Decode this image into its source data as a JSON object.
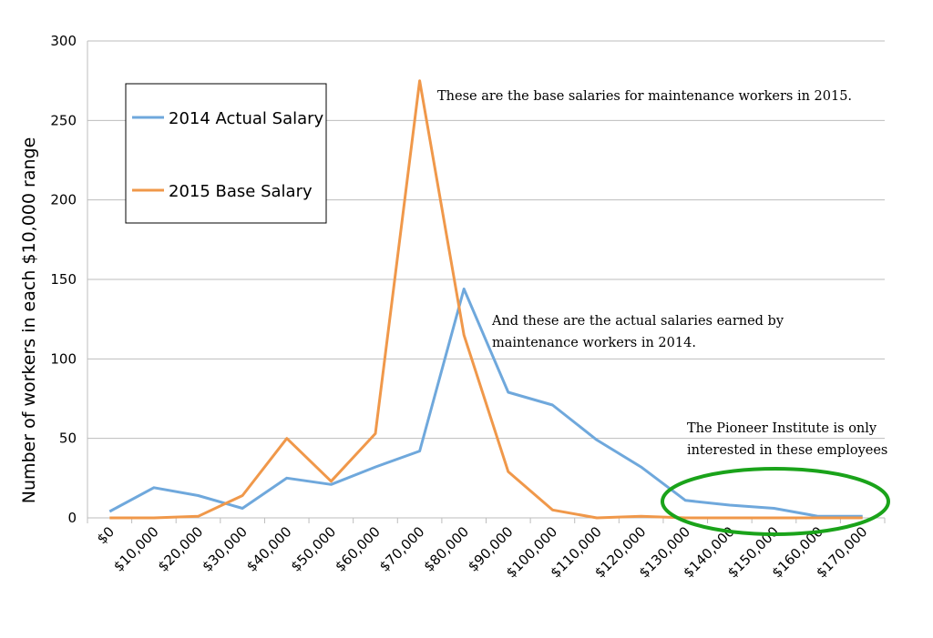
{
  "chart_data": {
    "type": "line",
    "title": "",
    "xlabel": "",
    "ylabel": "Number of workers in each $10,000 range",
    "categories": [
      "$0",
      "$10,000",
      "$20,000",
      "$30,000",
      "$40,000",
      "$50,000",
      "$60,000",
      "$70,000",
      "$80,000",
      "$90,000",
      "$100,000",
      "$110,000",
      "$120,000",
      "$130,000",
      "$140,000",
      "$150,000",
      "$160,000",
      "$170,000"
    ],
    "ylim": [
      0,
      300
    ],
    "yticks": [
      0,
      50,
      100,
      150,
      200,
      250,
      300
    ],
    "grid": "horizontal",
    "legend_position": "top-left",
    "series": [
      {
        "name": "2014 Actual Salary",
        "color": "#6fa8dc",
        "values": [
          4,
          19,
          14,
          6,
          25,
          21,
          32,
          42,
          144,
          79,
          71,
          49,
          32,
          11,
          8,
          6,
          1,
          1
        ]
      },
      {
        "name": "2015 Base Salary",
        "color": "#f0984a",
        "values": [
          0,
          0,
          1,
          14,
          50,
          23,
          53,
          275,
          115,
          29,
          5,
          0,
          1,
          0,
          0,
          0,
          0,
          0
        ]
      }
    ],
    "annotations": {
      "base_note": "These are the base salaries for maintenance workers in 2015.",
      "actual_note_line1": "And these are the actual salaries earned by",
      "actual_note_line2": "maintenance workers in 2014.",
      "pioneer_note_line1": "The Pioneer Institute is only",
      "pioneer_note_line2": "interested in these employees"
    },
    "highlight_color": "#1aa31a"
  }
}
